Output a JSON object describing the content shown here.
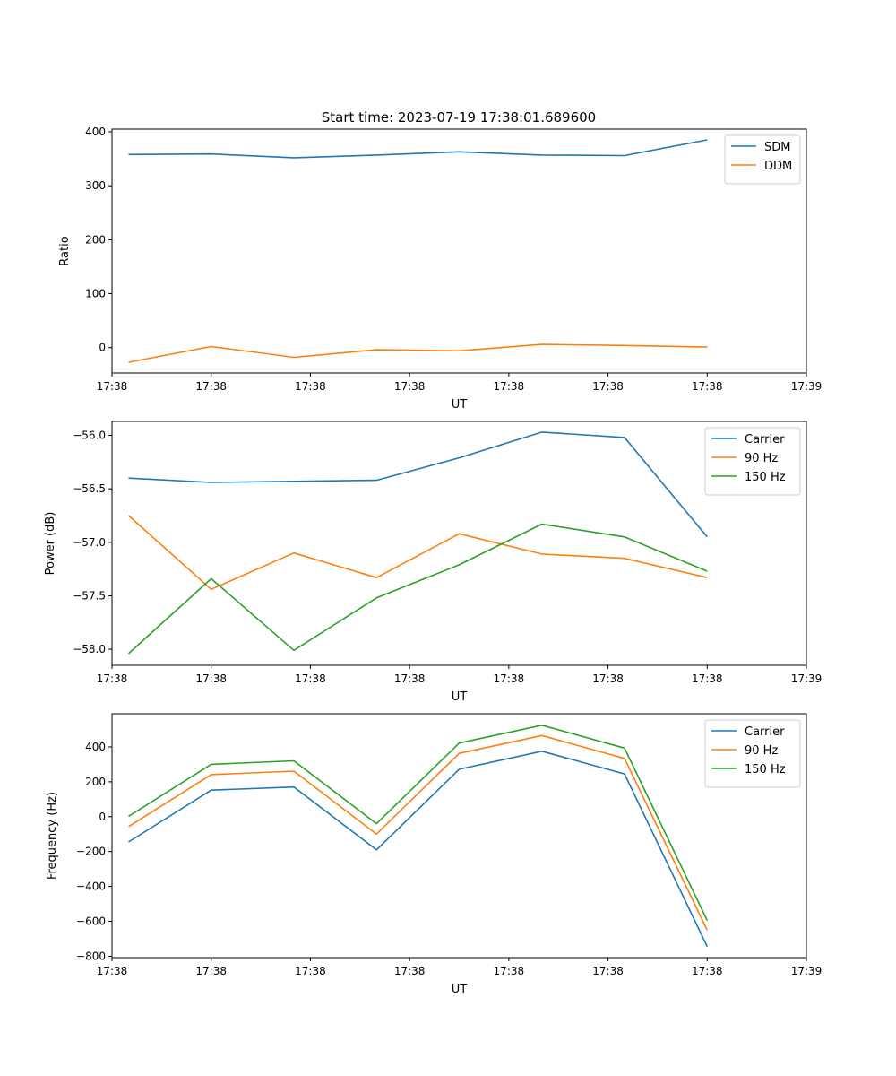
{
  "figure_title": "Start time: 2023-07-19 17:38:01.689600",
  "colors": {
    "blue": "#1f77b4",
    "orange": "#ff7f0e",
    "green": "#2ca02c"
  },
  "chart_data": [
    {
      "type": "line",
      "title": "Start time: 2023-07-19 17:38:01.689600",
      "xlabel": "UT",
      "ylabel": "Ratio",
      "x": [
        1,
        2,
        3,
        4,
        5,
        6,
        7,
        8
      ],
      "xlim": [
        0.8,
        9.2
      ],
      "x_ticks": [
        {
          "v": 0.8,
          "label": "17:38"
        },
        {
          "v": 2.0,
          "label": "17:38"
        },
        {
          "v": 3.2,
          "label": "17:38"
        },
        {
          "v": 4.4,
          "label": "17:38"
        },
        {
          "v": 5.6,
          "label": "17:38"
        },
        {
          "v": 6.8,
          "label": "17:38"
        },
        {
          "v": 8.0,
          "label": "17:38"
        },
        {
          "v": 9.2,
          "label": "17:39"
        }
      ],
      "ylim": [
        -47,
        405
      ],
      "y_ticks": [
        0,
        100,
        200,
        300,
        400
      ],
      "y_tick_decimals": 0,
      "legend_position": "top-right",
      "series": [
        {
          "name": "SDM",
          "color": "#1f77b4",
          "values": [
            358,
            359,
            352,
            357,
            363,
            357,
            356,
            385
          ]
        },
        {
          "name": "DDM",
          "color": "#ff7f0e",
          "values": [
            -27,
            2,
            -18,
            -4,
            -6,
            6,
            4,
            1
          ]
        }
      ]
    },
    {
      "type": "line",
      "title": "",
      "xlabel": "UT",
      "ylabel": "Power (dB)",
      "x": [
        1,
        2,
        3,
        4,
        5,
        6,
        7,
        8
      ],
      "xlim": [
        0.8,
        9.2
      ],
      "x_ticks": [
        {
          "v": 0.8,
          "label": "17:38"
        },
        {
          "v": 2.0,
          "label": "17:38"
        },
        {
          "v": 3.2,
          "label": "17:38"
        },
        {
          "v": 4.4,
          "label": "17:38"
        },
        {
          "v": 5.6,
          "label": "17:38"
        },
        {
          "v": 6.8,
          "label": "17:38"
        },
        {
          "v": 8.0,
          "label": "17:38"
        },
        {
          "v": 9.2,
          "label": "17:39"
        }
      ],
      "ylim": [
        -58.15,
        -55.87
      ],
      "y_ticks": [
        -58.0,
        -57.5,
        -57.0,
        -56.5,
        -56.0
      ],
      "y_tick_decimals": 1,
      "legend_position": "top-right",
      "series": [
        {
          "name": "Carrier",
          "color": "#1f77b4",
          "values": [
            -56.4,
            -56.44,
            -56.43,
            -56.42,
            -56.21,
            -55.97,
            -56.02,
            -56.95
          ]
        },
        {
          "name": "90 Hz",
          "color": "#ff7f0e",
          "values": [
            -56.75,
            -57.44,
            -57.1,
            -57.33,
            -56.92,
            -57.11,
            -57.15,
            -57.33
          ]
        },
        {
          "name": "150 Hz",
          "color": "#2ca02c",
          "values": [
            -58.04,
            -57.34,
            -58.01,
            -57.52,
            -57.21,
            -56.83,
            -56.95,
            -57.27
          ]
        }
      ]
    },
    {
      "type": "line",
      "title": "",
      "xlabel": "UT",
      "ylabel": "Frequency (Hz)",
      "x": [
        1,
        2,
        3,
        4,
        5,
        6,
        7,
        8
      ],
      "xlim": [
        0.8,
        9.2
      ],
      "x_ticks": [
        {
          "v": 0.8,
          "label": "17:38"
        },
        {
          "v": 2.0,
          "label": "17:38"
        },
        {
          "v": 3.2,
          "label": "17:38"
        },
        {
          "v": 4.4,
          "label": "17:38"
        },
        {
          "v": 5.6,
          "label": "17:38"
        },
        {
          "v": 6.8,
          "label": "17:38"
        },
        {
          "v": 8.0,
          "label": "17:38"
        },
        {
          "v": 9.2,
          "label": "17:39"
        }
      ],
      "ylim": [
        -808,
        590
      ],
      "y_ticks": [
        -800,
        -600,
        -400,
        -200,
        0,
        200,
        400
      ],
      "y_tick_decimals": 0,
      "legend_position": "top-right",
      "series": [
        {
          "name": "Carrier",
          "color": "#1f77b4",
          "values": [
            -145,
            152,
            170,
            -190,
            272,
            375,
            245,
            -745
          ]
        },
        {
          "name": "90 Hz",
          "color": "#ff7f0e",
          "values": [
            -57,
            241,
            261,
            -100,
            363,
            465,
            334,
            -650
          ]
        },
        {
          "name": "150 Hz",
          "color": "#2ca02c",
          "values": [
            2,
            300,
            320,
            -40,
            422,
            524,
            393,
            -595
          ]
        }
      ]
    }
  ]
}
